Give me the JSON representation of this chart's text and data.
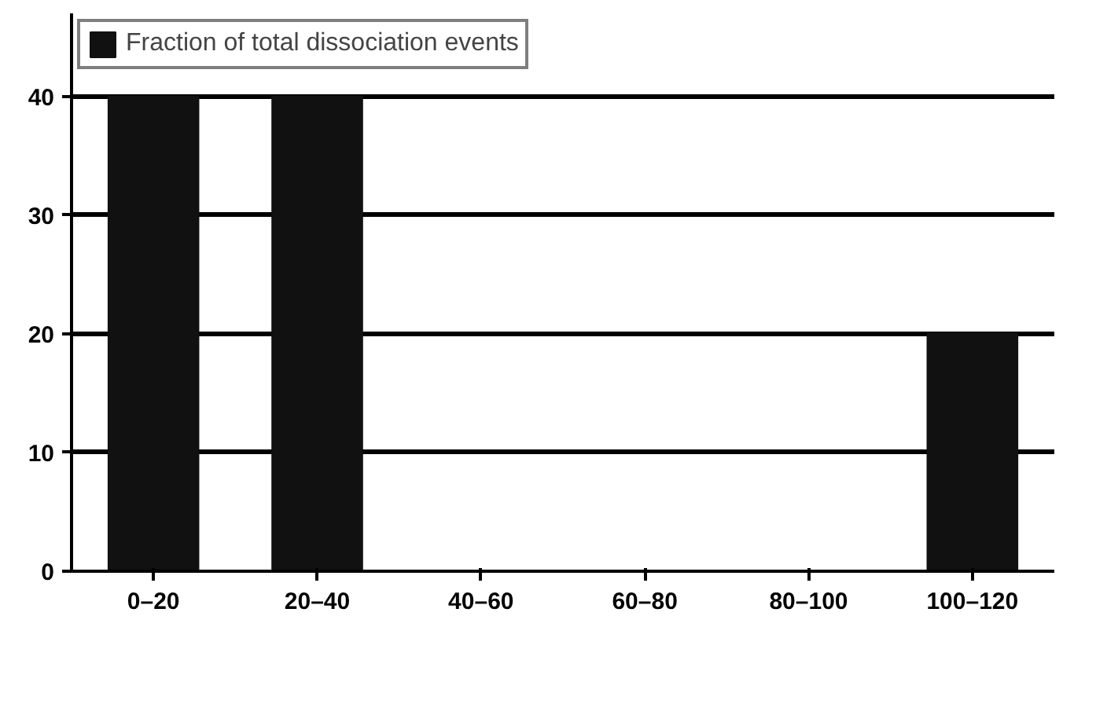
{
  "chart_data": {
    "type": "bar",
    "categories": [
      "0–20",
      "20–40",
      "40–60",
      "60–80",
      "80–100",
      "100–120"
    ],
    "series": [
      {
        "name": "Fraction of total dissociation events",
        "color": "#111111",
        "values": [
          40,
          40,
          0,
          0,
          0,
          20
        ]
      }
    ],
    "ylim": [
      0,
      47
    ],
    "yticks": [
      0,
      10,
      20,
      30,
      40
    ],
    "grid": "y",
    "legend": "top"
  }
}
